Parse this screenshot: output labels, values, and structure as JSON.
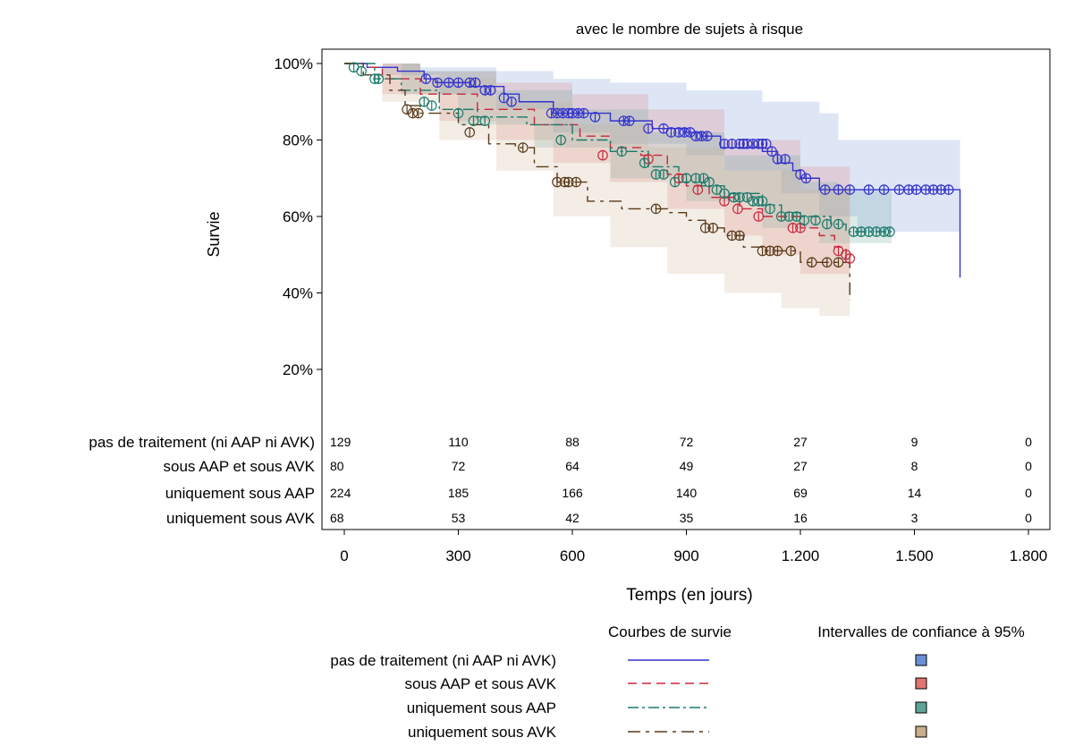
{
  "chart_data": {
    "type": "line",
    "subtitle": "avec le nombre de sujets à risque",
    "ylabel": "Survie",
    "xlabel": "Temps (en jours)",
    "xlim": [
      0,
      1800
    ],
    "ylim": [
      0,
      100
    ],
    "xticks": [
      0,
      300,
      600,
      900,
      1200,
      1500,
      1800
    ],
    "xtick_labels": [
      "0",
      "300",
      "600",
      "900",
      "1.200",
      "1.500",
      "1.800"
    ],
    "yticks": [
      20,
      40,
      60,
      80,
      100
    ],
    "ytick_labels": [
      "20%",
      "40%",
      "60%",
      "80%",
      "100%"
    ],
    "grid": false,
    "legend": {
      "placement": "bottom",
      "curves_header": "Courbes de survie",
      "ci_header": "Intervalles de confiance à 95%"
    },
    "risk_table": {
      "times": [
        0,
        300,
        600,
        900,
        1200,
        1500,
        1800
      ]
    },
    "series": [
      {
        "name": "pas de traitement (ni AAP ni AVK)",
        "color": "#3333cc",
        "ci_color": "#6a8fd6",
        "dash": "",
        "points": [
          [
            0,
            100
          ],
          [
            60,
            99
          ],
          [
            140,
            98
          ],
          [
            210,
            96
          ],
          [
            240,
            95
          ],
          [
            330,
            94
          ],
          [
            420,
            92
          ],
          [
            460,
            90
          ],
          [
            550,
            87
          ],
          [
            700,
            85
          ],
          [
            810,
            83
          ],
          [
            900,
            82
          ],
          [
            940,
            81
          ],
          [
            990,
            78
          ],
          [
            1100,
            77
          ],
          [
            1140,
            74
          ],
          [
            1180,
            72
          ],
          [
            1200,
            70
          ],
          [
            1250,
            67
          ],
          [
            1620,
            67
          ],
          [
            1620,
            44
          ]
        ],
        "ci_upper": [
          [
            0,
            100
          ],
          [
            200,
            99
          ],
          [
            400,
            98
          ],
          [
            550,
            96
          ],
          [
            700,
            95
          ],
          [
            900,
            93
          ],
          [
            1100,
            90
          ],
          [
            1250,
            87
          ],
          [
            1300,
            80
          ],
          [
            1620,
            77
          ]
        ],
        "ci_lower": [
          [
            0,
            100
          ],
          [
            100,
            97
          ],
          [
            250,
            92
          ],
          [
            400,
            88
          ],
          [
            550,
            82
          ],
          [
            700,
            79
          ],
          [
            900,
            76
          ],
          [
            1000,
            72
          ],
          [
            1150,
            66
          ],
          [
            1250,
            60
          ],
          [
            1350,
            56
          ],
          [
            1620,
            53
          ]
        ],
        "censors": [
          [
            215,
            96
          ],
          [
            245,
            95
          ],
          [
            275,
            95
          ],
          [
            300,
            95
          ],
          [
            330,
            95
          ],
          [
            345,
            95
          ],
          [
            370,
            93
          ],
          [
            385,
            93
          ],
          [
            420,
            91
          ],
          [
            440,
            90
          ],
          [
            545,
            87
          ],
          [
            560,
            87
          ],
          [
            575,
            87
          ],
          [
            590,
            87
          ],
          [
            600,
            87
          ],
          [
            615,
            87
          ],
          [
            630,
            87
          ],
          [
            660,
            86
          ],
          [
            735,
            85
          ],
          [
            750,
            85
          ],
          [
            800,
            83
          ],
          [
            840,
            83
          ],
          [
            860,
            82
          ],
          [
            880,
            82
          ],
          [
            895,
            82
          ],
          [
            910,
            82
          ],
          [
            925,
            81
          ],
          [
            940,
            81
          ],
          [
            955,
            81
          ],
          [
            1000,
            79
          ],
          [
            1020,
            79
          ],
          [
            1040,
            79
          ],
          [
            1050,
            79
          ],
          [
            1060,
            79
          ],
          [
            1075,
            79
          ],
          [
            1090,
            79
          ],
          [
            1100,
            79
          ],
          [
            1110,
            79
          ],
          [
            1125,
            77
          ],
          [
            1140,
            75
          ],
          [
            1160,
            75
          ],
          [
            1200,
            71
          ],
          [
            1215,
            70
          ],
          [
            1265,
            67
          ],
          [
            1300,
            67
          ],
          [
            1330,
            67
          ],
          [
            1380,
            67
          ],
          [
            1420,
            67
          ],
          [
            1460,
            67
          ],
          [
            1485,
            67
          ],
          [
            1505,
            67
          ],
          [
            1530,
            67
          ],
          [
            1550,
            67
          ],
          [
            1570,
            67
          ],
          [
            1590,
            67
          ]
        ],
        "at_risk": [
          "129",
          "110",
          "88",
          "72",
          "27",
          "9",
          "0"
        ]
      },
      {
        "name": "sous AAP et sous AVK",
        "color": "#c8283c",
        "ci_color": "#e07570",
        "dash": "10,6",
        "points": [
          [
            0,
            100
          ],
          [
            50,
            99
          ],
          [
            100,
            96
          ],
          [
            200,
            92
          ],
          [
            350,
            88
          ],
          [
            500,
            84
          ],
          [
            620,
            81
          ],
          [
            700,
            78
          ],
          [
            780,
            76
          ],
          [
            850,
            71
          ],
          [
            900,
            68
          ],
          [
            960,
            65
          ],
          [
            1040,
            62
          ],
          [
            1100,
            60
          ],
          [
            1200,
            57
          ],
          [
            1250,
            55
          ],
          [
            1290,
            52
          ],
          [
            1320,
            49
          ]
        ],
        "ci_upper": [
          [
            0,
            100
          ],
          [
            200,
            98
          ],
          [
            400,
            95
          ],
          [
            600,
            92
          ],
          [
            800,
            88
          ],
          [
            1000,
            80
          ],
          [
            1200,
            73
          ],
          [
            1330,
            68
          ]
        ],
        "ci_lower": [
          [
            0,
            100
          ],
          [
            100,
            92
          ],
          [
            250,
            85
          ],
          [
            400,
            80
          ],
          [
            550,
            74
          ],
          [
            700,
            69
          ],
          [
            850,
            62
          ],
          [
            1000,
            55
          ],
          [
            1100,
            50
          ],
          [
            1200,
            45
          ],
          [
            1330,
            36
          ]
        ],
        "censors": [
          [
            680,
            76
          ],
          [
            800,
            75
          ],
          [
            880,
            70
          ],
          [
            930,
            67
          ],
          [
            1000,
            64
          ],
          [
            1035,
            62
          ],
          [
            1090,
            60
          ],
          [
            1180,
            57
          ],
          [
            1200,
            57
          ],
          [
            1300,
            51
          ],
          [
            1320,
            50
          ],
          [
            1330,
            49
          ]
        ],
        "at_risk": [
          "80",
          "72",
          "64",
          "49",
          "27",
          "8",
          "0"
        ]
      },
      {
        "name": "uniquement sous AAP",
        "color": "#1a7a6a",
        "ci_color": "#5fa398",
        "dash": "12,4,3,4",
        "points": [
          [
            0,
            100
          ],
          [
            80,
            96
          ],
          [
            150,
            93
          ],
          [
            250,
            88
          ],
          [
            350,
            86
          ],
          [
            480,
            84
          ],
          [
            600,
            80
          ],
          [
            700,
            77
          ],
          [
            800,
            73
          ],
          [
            880,
            69
          ],
          [
            940,
            68
          ],
          [
            1000,
            66
          ],
          [
            1100,
            63
          ],
          [
            1150,
            61
          ],
          [
            1200,
            60
          ],
          [
            1280,
            58
          ],
          [
            1320,
            56
          ],
          [
            1440,
            56
          ]
        ],
        "ci_upper": [
          [
            0,
            100
          ],
          [
            200,
            98
          ],
          [
            400,
            93
          ],
          [
            600,
            88
          ],
          [
            800,
            82
          ],
          [
            1000,
            76
          ],
          [
            1200,
            69
          ],
          [
            1300,
            67
          ],
          [
            1440,
            62
          ]
        ],
        "ci_lower": [
          [
            0,
            100
          ],
          [
            150,
            92
          ],
          [
            300,
            84
          ],
          [
            500,
            78
          ],
          [
            700,
            70
          ],
          [
            900,
            64
          ],
          [
            1100,
            57
          ],
          [
            1250,
            53
          ],
          [
            1440,
            48
          ]
        ],
        "censors": [
          [
            25,
            99
          ],
          [
            45,
            98
          ],
          [
            80,
            96
          ],
          [
            90,
            96
          ],
          [
            210,
            90
          ],
          [
            230,
            89
          ],
          [
            300,
            87
          ],
          [
            340,
            85
          ],
          [
            370,
            85
          ],
          [
            570,
            80
          ],
          [
            730,
            77
          ],
          [
            790,
            74
          ],
          [
            820,
            71
          ],
          [
            840,
            71
          ],
          [
            870,
            69
          ],
          [
            900,
            70
          ],
          [
            925,
            70
          ],
          [
            945,
            70
          ],
          [
            960,
            69
          ],
          [
            980,
            67
          ],
          [
            1000,
            66
          ],
          [
            1025,
            65
          ],
          [
            1040,
            65
          ],
          [
            1060,
            65
          ],
          [
            1075,
            64
          ],
          [
            1090,
            64
          ],
          [
            1100,
            64
          ],
          [
            1120,
            62
          ],
          [
            1150,
            60
          ],
          [
            1170,
            60
          ],
          [
            1190,
            60
          ],
          [
            1210,
            59
          ],
          [
            1240,
            59
          ],
          [
            1270,
            58
          ],
          [
            1300,
            58
          ],
          [
            1340,
            56
          ],
          [
            1360,
            56
          ],
          [
            1380,
            56
          ],
          [
            1400,
            56
          ],
          [
            1420,
            56
          ],
          [
            1435,
            56
          ]
        ],
        "at_risk": [
          "224",
          "185",
          "166",
          "140",
          "69",
          "14",
          "0"
        ]
      },
      {
        "name": "uniquement sous AVK",
        "color": "#5a3b1a",
        "ci_color": "#c9ad8c",
        "dash": "14,6,4,6",
        "points": [
          [
            0,
            100
          ],
          [
            50,
            97
          ],
          [
            120,
            93
          ],
          [
            160,
            89
          ],
          [
            200,
            87
          ],
          [
            300,
            84
          ],
          [
            380,
            79
          ],
          [
            450,
            78
          ],
          [
            500,
            73
          ],
          [
            560,
            69
          ],
          [
            640,
            64
          ],
          [
            730,
            62
          ],
          [
            850,
            61
          ],
          [
            900,
            59
          ],
          [
            950,
            57
          ],
          [
            1000,
            55
          ],
          [
            1050,
            52
          ],
          [
            1100,
            51
          ],
          [
            1200,
            48
          ],
          [
            1300,
            48
          ],
          [
            1330,
            38
          ]
        ],
        "ci_upper": [
          [
            0,
            100
          ],
          [
            200,
            96
          ],
          [
            400,
            90
          ],
          [
            600,
            84
          ],
          [
            800,
            78
          ],
          [
            1000,
            72
          ],
          [
            1200,
            67
          ],
          [
            1330,
            60
          ]
        ],
        "ci_lower": [
          [
            0,
            100
          ],
          [
            100,
            90
          ],
          [
            250,
            80
          ],
          [
            400,
            72
          ],
          [
            550,
            60
          ],
          [
            700,
            52
          ],
          [
            850,
            45
          ],
          [
            1000,
            40
          ],
          [
            1150,
            36
          ],
          [
            1250,
            34
          ],
          [
            1330,
            26
          ]
        ],
        "censors": [
          [
            165,
            88
          ],
          [
            180,
            87
          ],
          [
            195,
            87
          ],
          [
            330,
            82
          ],
          [
            470,
            78
          ],
          [
            560,
            69
          ],
          [
            580,
            69
          ],
          [
            590,
            69
          ],
          [
            610,
            69
          ],
          [
            820,
            62
          ],
          [
            950,
            57
          ],
          [
            970,
            57
          ],
          [
            1020,
            55
          ],
          [
            1040,
            55
          ],
          [
            1100,
            51
          ],
          [
            1120,
            51
          ],
          [
            1140,
            51
          ],
          [
            1175,
            51
          ],
          [
            1230,
            48
          ],
          [
            1270,
            48
          ],
          [
            1300,
            48
          ]
        ],
        "at_risk": [
          "68",
          "53",
          "42",
          "35",
          "16",
          "3",
          "0"
        ]
      }
    ]
  }
}
